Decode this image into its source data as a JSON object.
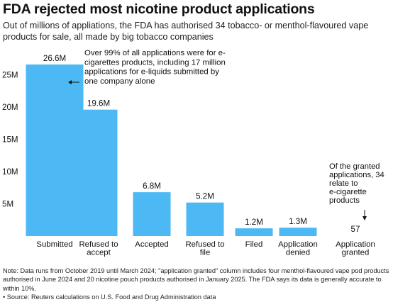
{
  "title": "FDA rejected most nicotine product applications",
  "subtitle": "Out of millions of appliations, the FDA has authorised 34 tobacco- or menthol-flavoured vape products for sale, all made by big tobacco companies",
  "note": "Note: Data runs from October 2019 until March 2024; \"application granted\" column includes four menthol-flavoured vape pod products authorised in June 2024 and 20 nicotine pouch products authorised in January 2025. The FDA says its data is generally accurate to within 10%.",
  "source": "• Source: Reuters calculations on U.S. Food and Drug Administration data",
  "chart_data": {
    "type": "bar",
    "categories": [
      [
        "Submitted"
      ],
      [
        "Refused to",
        "accept"
      ],
      [
        "Accepted"
      ],
      [
        "Refused to",
        "file"
      ],
      [
        "Filed"
      ],
      [
        "Application",
        "denied"
      ],
      [
        "Application",
        "granted"
      ]
    ],
    "values": [
      26600000,
      19600000,
      6800000,
      5200000,
      1200000,
      1300000,
      57
    ],
    "value_labels": [
      "26.6M",
      "19.6M",
      "6.8M",
      "5.2M",
      "1.2M",
      "1.3M",
      "57"
    ],
    "y_ticks": [
      {
        "value": 5000000,
        "label": "5M"
      },
      {
        "value": 10000000,
        "label": "10M"
      },
      {
        "value": 15000000,
        "label": "15M"
      },
      {
        "value": 20000000,
        "label": "20M"
      },
      {
        "value": 25000000,
        "label": "25M"
      }
    ],
    "ylim": [
      0,
      27000000
    ],
    "bar_color": "#4cb9f5",
    "grid": false,
    "annotations": [
      {
        "target_index": 0,
        "arrow": "left",
        "lines": [
          "Over 99% of all applications were for e-",
          "cigarettes products, including 17 million",
          "applications for e-liquids submitted by",
          "one company alone"
        ]
      },
      {
        "target_index": 6,
        "arrow": "down",
        "lines": [
          "Of the granted",
          "applications, 34",
          "relate to",
          "e-cigarette",
          "products"
        ]
      }
    ]
  }
}
